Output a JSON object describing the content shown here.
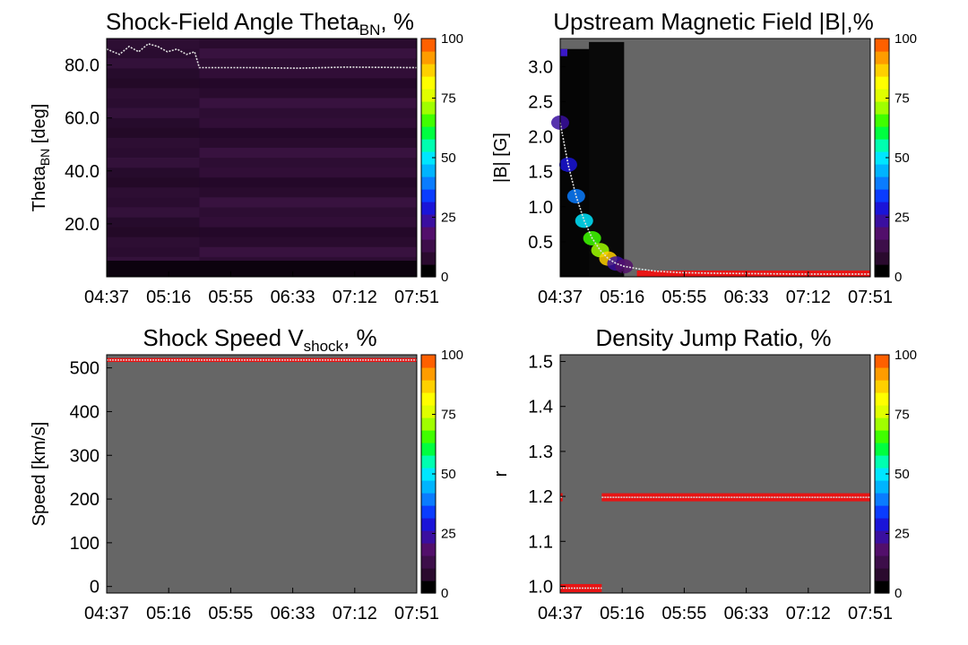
{
  "x_tick_labels": [
    "04:37",
    "05:16",
    "05:55",
    "06:33",
    "07:12",
    "07:51"
  ],
  "colorbar": {
    "ticks": [
      "0",
      "25",
      "50",
      "75",
      "100"
    ],
    "range": [
      0,
      100
    ],
    "colors": [
      "#000000",
      "#2a0a2e",
      "#3d0e4a",
      "#520f6b",
      "#3a0fa0",
      "#1a14d8",
      "#0a3cff",
      "#0a7cff",
      "#00b4ff",
      "#00e6ff",
      "#00ffb0",
      "#00ff40",
      "#40ff00",
      "#a0ff00",
      "#e0ff00",
      "#ffff00",
      "#ffd000",
      "#ff9c00",
      "#ff6000"
    ]
  },
  "chart_data": [
    {
      "type": "heatmap",
      "title_main": "Shock-Field Angle Theta",
      "title_sub": "BN",
      "title_tail": ", %",
      "ylabel_main": "Theta",
      "ylabel_sub": "BN",
      "ylabel_tail": " [deg]",
      "ylim": [
        0,
        90
      ],
      "yticks": [
        {
          "value": 20,
          "label": "20.0"
        },
        {
          "value": 40,
          "label": "40.0"
        },
        {
          "value": 60,
          "label": "60.0"
        },
        {
          "value": 80,
          "label": "80.0"
        }
      ],
      "xlim": [
        0,
        194
      ],
      "median_line": [
        [
          0,
          86
        ],
        [
          8,
          84
        ],
        [
          14,
          87
        ],
        [
          20,
          85
        ],
        [
          26,
          88
        ],
        [
          32,
          87
        ],
        [
          38,
          85
        ],
        [
          44,
          86
        ],
        [
          50,
          84
        ],
        [
          55,
          85
        ],
        [
          58,
          79
        ],
        [
          90,
          79
        ],
        [
          120,
          78.8
        ],
        [
          150,
          79.2
        ],
        [
          194,
          79
        ]
      ]
    },
    {
      "type": "heatmap",
      "title_main": "Upstream Magnetic Field |B|,%",
      "ylabel_main": "|B| [G]",
      "ylim": [
        0,
        3.4
      ],
      "yticks": [
        {
          "value": 0.5,
          "label": "0.5"
        },
        {
          "value": 1.0,
          "label": "1.0"
        },
        {
          "value": 1.5,
          "label": "1.5"
        },
        {
          "value": 2.0,
          "label": "2.0"
        },
        {
          "value": 2.5,
          "label": "2.5"
        },
        {
          "value": 3.0,
          "label": "3.0"
        }
      ],
      "xlim": [
        0,
        194
      ],
      "median_line": [
        [
          0,
          2.2
        ],
        [
          5,
          1.6
        ],
        [
          10,
          1.15
        ],
        [
          15,
          0.8
        ],
        [
          20,
          0.55
        ],
        [
          25,
          0.38
        ],
        [
          30,
          0.26
        ],
        [
          35,
          0.19
        ],
        [
          40,
          0.15
        ],
        [
          50,
          0.11
        ],
        [
          60,
          0.08
        ],
        [
          75,
          0.06
        ],
        [
          100,
          0.05
        ],
        [
          150,
          0.04
        ],
        [
          194,
          0.04
        ]
      ]
    },
    {
      "type": "heatmap",
      "title_main": "Shock Speed V",
      "title_sub": "shock",
      "title_tail": ", %",
      "ylabel_main": "Speed [km/s]",
      "ylim": [
        -15,
        530
      ],
      "yticks": [
        {
          "value": 0,
          "label": "0"
        },
        {
          "value": 100,
          "label": "100"
        },
        {
          "value": 200,
          "label": "200"
        },
        {
          "value": 300,
          "label": "300"
        },
        {
          "value": 400,
          "label": "400"
        },
        {
          "value": 500,
          "label": "500"
        }
      ],
      "xlim": [
        0,
        194
      ],
      "bands": [
        {
          "x0": 0,
          "x1": 194,
          "y": 518,
          "half": 4.5
        }
      ]
    },
    {
      "type": "heatmap",
      "title_main": "Density Jump Ratio, %",
      "ylabel_main": "r",
      "ylim": [
        0.985,
        1.515
      ],
      "yticks": [
        {
          "value": 1.0,
          "label": "1.0"
        },
        {
          "value": 1.1,
          "label": "1.1"
        },
        {
          "value": 1.2,
          "label": "1.2"
        },
        {
          "value": 1.3,
          "label": "1.3"
        },
        {
          "value": 1.4,
          "label": "1.4"
        },
        {
          "value": 1.5,
          "label": "1.5"
        }
      ],
      "xlim": [
        0,
        194
      ],
      "bands": [
        {
          "x0": 0,
          "x1": 26,
          "y": 0.996,
          "half": 0.009
        },
        {
          "x0": 26,
          "x1": 194,
          "y": 1.198,
          "half": 0.009
        },
        {
          "x0": 0,
          "x1": 1.5,
          "y": 1.198,
          "half": 0.009
        }
      ]
    }
  ]
}
